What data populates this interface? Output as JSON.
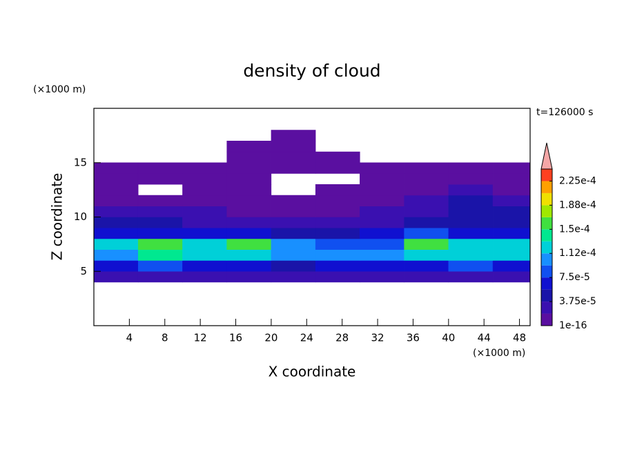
{
  "chart_data": {
    "type": "contour",
    "title": "density of cloud",
    "x_label": "X coordinate",
    "y_label": "Z coordinate",
    "x_unit": "(×1000 m)",
    "y_unit": "(×1000 m)",
    "annotation": "t=126000 s",
    "xlim": [
      0,
      49.2
    ],
    "ylim": [
      0,
      20
    ],
    "xticks": [
      4,
      8,
      12,
      16,
      20,
      24,
      28,
      32,
      36,
      40,
      44,
      48
    ],
    "yticks": [
      5,
      10,
      15
    ],
    "field": {
      "x": [
        2.5,
        7.5,
        12.5,
        17.5,
        22.5,
        27.5,
        32.5,
        37.5,
        42.5,
        47.5
      ],
      "z": [
        4.5,
        5.5,
        6.5,
        7.5,
        8.5,
        9.5,
        10.5,
        11.5,
        12.5,
        13.5,
        14.5,
        15.5,
        16.5,
        17.5
      ],
      "values": [
        [
          2e-05,
          2e-05,
          2e-05,
          2e-05,
          2e-05,
          2e-05,
          2e-05,
          2e-05,
          2e-05,
          2e-05
        ],
        [
          7e-05,
          8e-05,
          6e-05,
          7e-05,
          5e-05,
          6e-05,
          6e-05,
          7e-05,
          8e-05,
          7e-05
        ],
        [
          0.00011,
          0.00014,
          0.00012,
          0.00013,
          0.0001,
          0.00011,
          0.00011,
          0.00013,
          0.00013,
          0.00012
        ],
        [
          0.00012,
          0.00016,
          0.00013,
          0.00015,
          0.00011,
          9e-05,
          9e-05,
          0.00016,
          0.00012,
          0.00013
        ],
        [
          6e-05,
          7e-05,
          6e-05,
          7e-05,
          5e-05,
          5e-05,
          6e-05,
          8e-05,
          7e-05,
          7e-05
        ],
        [
          4e-05,
          4e-05,
          3e-05,
          3e-05,
          3e-05,
          2e-05,
          3e-05,
          4e-05,
          5e-05,
          5e-05
        ],
        [
          3e-05,
          2e-05,
          2e-05,
          1e-06,
          1e-06,
          1e-06,
          2e-05,
          3e-05,
          5e-05,
          4e-05
        ],
        [
          1.5e-05,
          1.5e-05,
          1e-06,
          1e-06,
          1e-06,
          1e-06,
          1e-06,
          2e-05,
          4e-05,
          3e-05
        ],
        [
          1e-06,
          null,
          1e-06,
          1e-06,
          null,
          1e-06,
          1e-06,
          1e-06,
          2e-05,
          1e-06
        ],
        [
          1e-06,
          1e-06,
          1e-06,
          1e-06,
          null,
          null,
          1e-06,
          1e-06,
          1e-06,
          1e-06
        ],
        [
          1e-06,
          1e-06,
          1e-06,
          1e-06,
          1e-06,
          1e-06,
          1e-06,
          1e-06,
          1e-06,
          1e-06
        ],
        [
          null,
          null,
          null,
          1e-06,
          1e-06,
          1e-06,
          null,
          null,
          null,
          null
        ],
        [
          null,
          null,
          null,
          1e-06,
          1e-06,
          null,
          null,
          null,
          null,
          null
        ],
        [
          null,
          null,
          null,
          null,
          1e-06,
          null,
          null,
          null,
          null,
          null
        ]
      ]
    },
    "colorbar": {
      "levels": [
        1e-16,
        1.875e-05,
        3.75e-05,
        5.625e-05,
        7.5e-05,
        9.375e-05,
        0.0001125,
        0.00013125,
        0.00015,
        0.00016875,
        0.0001875,
        0.00020625,
        0.000225,
        0.00024375
      ],
      "colors": [
        "#5a0fa0",
        "#3a10b0",
        "#1a14a8",
        "#1010d0",
        "#1050f0",
        "#1890ff",
        "#00d0d8",
        "#00e890",
        "#40e040",
        "#a0e800",
        "#f0e000",
        "#ffa000",
        "#ff4020"
      ],
      "extend_color": "#f4a6a6",
      "ticks": [
        1e-16,
        {
          "value": 3.75e-05,
          "label": "3.75e-5"
        },
        {
          "value": 7.5e-05,
          "label": "7.5e-5"
        },
        {
          "value": 0.0001125,
          "label": "1.12e-4"
        },
        {
          "value": 0.00015,
          "label": "1.5e-4"
        },
        {
          "value": 0.0001875,
          "label": "1.88e-4"
        },
        {
          "value": 0.000225,
          "label": "2.25e-4"
        }
      ]
    }
  }
}
